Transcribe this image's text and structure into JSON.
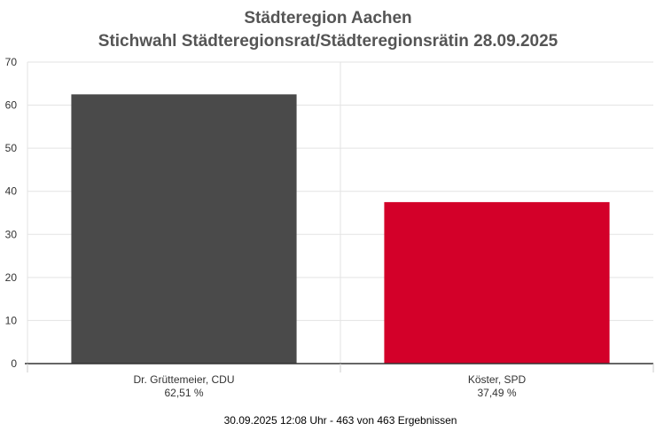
{
  "header": {
    "title": "Städteregion Aachen",
    "subtitle": "Stichwahl Städteregionsrat/Städteregionsrätin 28.09.2025"
  },
  "footer": {
    "status": "30.09.2025 12:08 Uhr - 463 von 463 Ergebnissen"
  },
  "chart_data": {
    "type": "bar",
    "categories": [
      "Dr. Grüttemeier, CDU",
      "Köster, SPD"
    ],
    "data_labels": [
      "62,51 %",
      "37,49 %"
    ],
    "values": [
      62.51,
      37.49
    ],
    "colors": [
      "#4a4a4a",
      "#d30029"
    ],
    "title": "Städteregion Aachen",
    "subtitle": "Stichwahl Städteregionsrat/Städteregionsrätin 28.09.2025",
    "xlabel": "",
    "ylabel": "",
    "ylim": [
      0,
      70
    ],
    "yticks": [
      0,
      10,
      20,
      30,
      40,
      50,
      60,
      70
    ],
    "grid": true,
    "legend": "none"
  }
}
